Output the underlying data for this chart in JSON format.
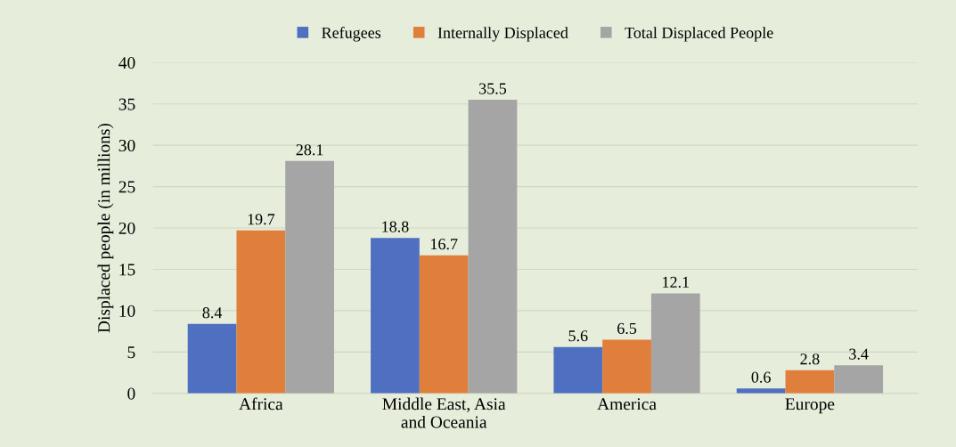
{
  "chart_data": {
    "type": "bar",
    "categories": [
      "Africa",
      "Middle East, Asia\nand Oceania",
      "America",
      "Europe"
    ],
    "series": [
      {
        "name": "Refugees",
        "color": "#4f6fc0",
        "values": [
          8.4,
          18.8,
          5.6,
          0.6
        ]
      },
      {
        "name": "Internally Displaced",
        "color": "#e07f3c",
        "values": [
          19.7,
          16.7,
          6.5,
          2.8
        ]
      },
      {
        "name": "Total Displaced People",
        "color": "#a5a5a5",
        "values": [
          28.1,
          35.5,
          12.1,
          3.4
        ]
      }
    ],
    "ylabel": "Displaced people (in millions)",
    "ylim": [
      0,
      40
    ],
    "yticks": [
      0,
      5,
      10,
      15,
      20,
      25,
      30,
      35,
      40
    ],
    "grid": "y",
    "legend": "top",
    "data_labels": true
  }
}
